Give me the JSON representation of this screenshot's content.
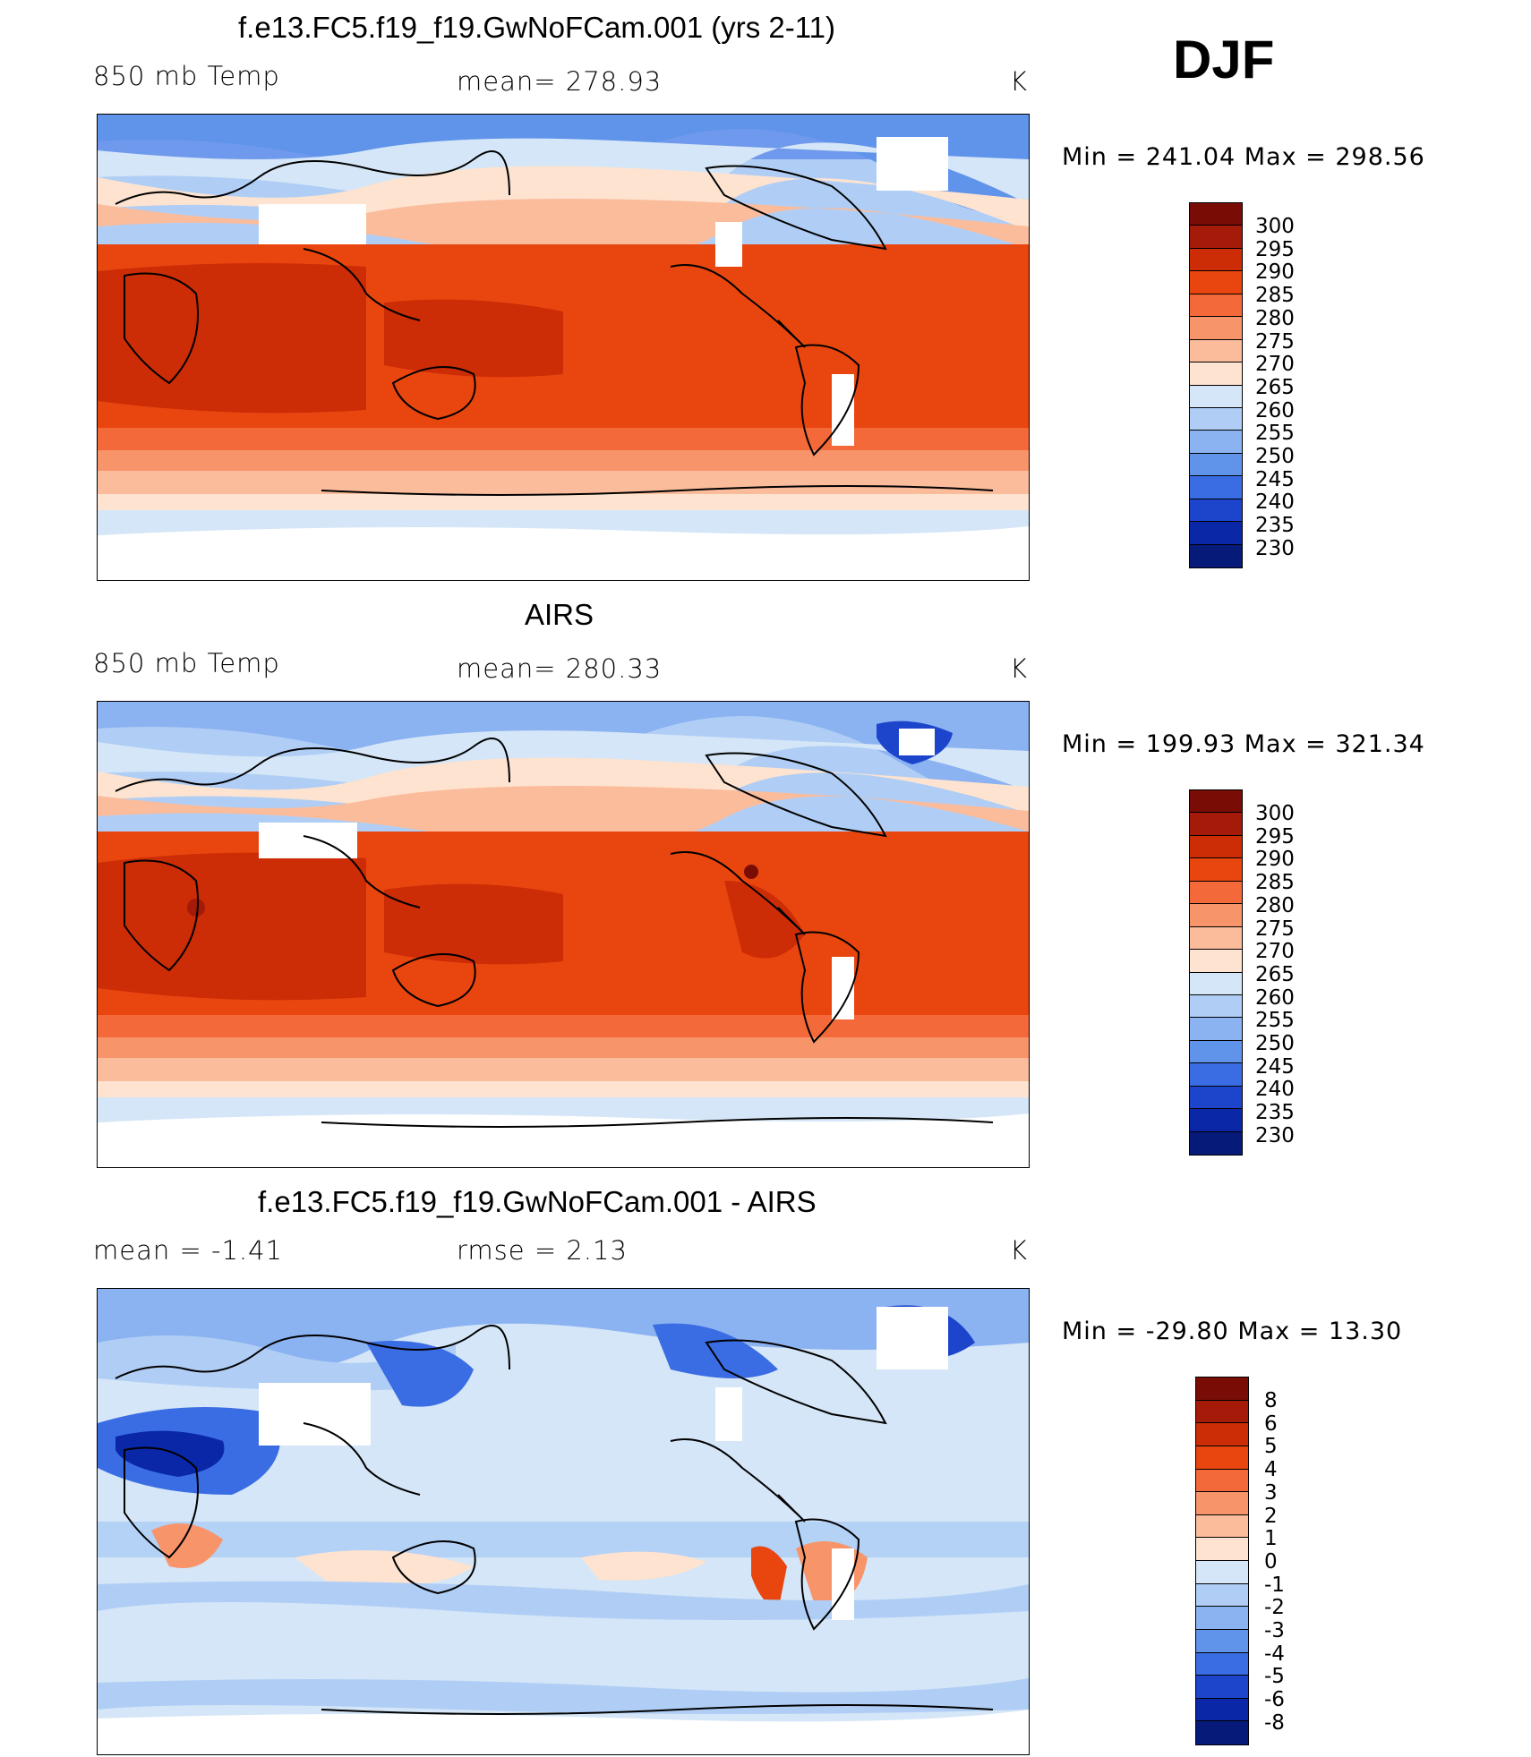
{
  "season": "DJF",
  "panels": [
    {
      "title": "f.e13.FC5.f19_f19.GwNoFCam.001 (yrs 2-11)",
      "left_label": "850 mb Temp",
      "center_label": "mean= 278.93",
      "units": "K",
      "minmax": "Min = 241.04 Max = 298.56",
      "ticks": [
        "300",
        "295",
        "290",
        "285",
        "280",
        "275",
        "270",
        "265",
        "260",
        "255",
        "250",
        "245",
        "240",
        "235",
        "230"
      ]
    },
    {
      "title": "AIRS",
      "left_label": "850 mb Temp",
      "center_label": "mean= 280.33",
      "units": "K",
      "minmax": "Min = 199.93 Max = 321.34",
      "ticks": [
        "300",
        "295",
        "290",
        "285",
        "280",
        "275",
        "270",
        "265",
        "260",
        "255",
        "250",
        "245",
        "240",
        "235",
        "230"
      ]
    },
    {
      "title": "f.e13.FC5.f19_f19.GwNoFCam.001 - AIRS",
      "left_label": "mean = -1.41",
      "center_label": "rmse = 2.13",
      "units": "K",
      "minmax": "Min = -29.80 Max = 13.30",
      "ticks": [
        "8",
        "6",
        "5",
        "4",
        "3",
        "2",
        "1",
        "0",
        "-1",
        "-2",
        "-3",
        "-4",
        "-5",
        "-6",
        "-8"
      ]
    }
  ],
  "colors": {
    "temp_scale": [
      "#7a0c06",
      "#a51a08",
      "#cc2c06",
      "#e9460f",
      "#f4693a",
      "#f8946a",
      "#fbbc9c",
      "#fde3d0",
      "#d4e6f7",
      "#b0cef5",
      "#8bb2f1",
      "#6093ea",
      "#3a6de3",
      "#1c45cc",
      "#0a27a7",
      "#061a7a"
    ],
    "diff_scale": [
      "#7a0c06",
      "#a51a08",
      "#cc2c06",
      "#e9460f",
      "#f4693a",
      "#f8946a",
      "#fbbc9c",
      "#fde3d0",
      "#d4e6f7",
      "#b0cef5",
      "#8bb2f1",
      "#6093ea",
      "#3a6de3",
      "#1c45cc",
      "#0a27a7",
      "#061a7a"
    ]
  }
}
